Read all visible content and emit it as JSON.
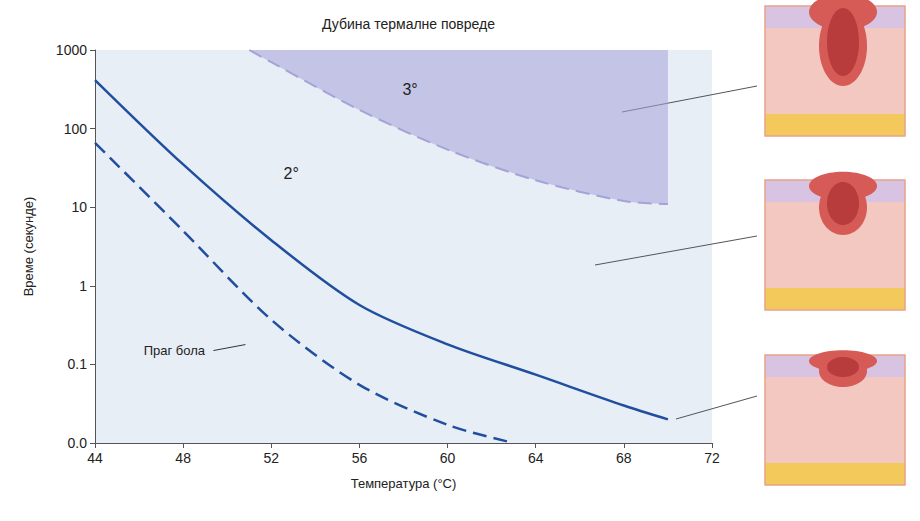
{
  "chart_data": {
    "type": "line",
    "title": "Дубина термалне повреде",
    "x_label": "Температура (°C)",
    "y_label": "Време (секунде)",
    "log": "y",
    "grid": false,
    "xlim": [
      44,
      72
    ],
    "xticks": [
      44,
      48,
      52,
      56,
      60,
      64,
      68,
      72
    ],
    "ylim": [
      0.01,
      1000
    ],
    "yticks": [
      {
        "value": 0.01,
        "label": "0.0"
      },
      {
        "value": 0.1,
        "label": "0.1"
      },
      1,
      10,
      100,
      1000
    ],
    "series": [
      {
        "type": "area",
        "color": "#a6a2d8",
        "line_style": "dashed",
        "marker": "none",
        "x": [
          51,
          52,
          56,
          60,
          64,
          68,
          70
        ],
        "values": [
          1000,
          700,
          173,
          54,
          22,
          12,
          11
        ]
      },
      {
        "type": "line",
        "color": "#1f4f9e",
        "line_style": "solid",
        "marker": "none",
        "x": [
          44,
          48,
          52,
          56,
          60,
          64,
          68,
          70
        ],
        "values": [
          415,
          35,
          3.8,
          0.57,
          0.18,
          0.074,
          0.03,
          0.02
        ]
      },
      {
        "type": "line",
        "color": "#1f4f9e",
        "line_style": "dashed",
        "marker": "none",
        "x": [
          44,
          48,
          52,
          56,
          60,
          63
        ],
        "values": [
          66,
          5,
          0.37,
          0.055,
          0.017,
          0.01
        ]
      }
    ],
    "annotations": [
      {
        "text": "3°",
        "x": 58.3,
        "y": 310
      },
      {
        "text": "2°",
        "x": 52.9,
        "y": 27
      },
      {
        "text": "Праг бола",
        "x": 47.6,
        "y": 0.15,
        "marker": "leader"
      }
    ]
  }
}
